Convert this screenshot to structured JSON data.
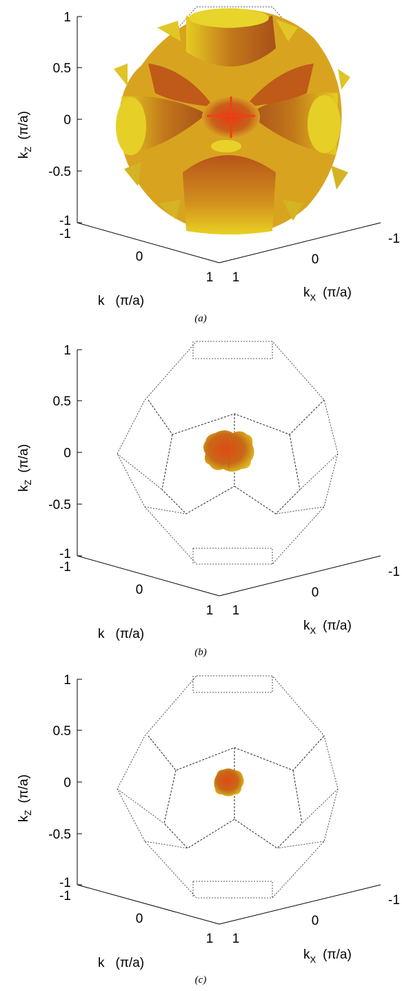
{
  "panels": [
    {
      "id": "a",
      "caption": "(a)",
      "z_ticks": [
        "1",
        "0.5",
        "0",
        "-0.5",
        "-1"
      ],
      "y_ticks": [
        "-1",
        "0",
        "1"
      ],
      "x_ticks": [
        "-1",
        "0",
        "1"
      ],
      "zlabel_main": "k",
      "zlabel_sub": "Z",
      "zlabel_unit": "(π/a)",
      "ylabel_main": "k",
      "ylabel_unit": "(π/a)",
      "xlabel_main": "k",
      "xlabel_sub": "X",
      "xlabel_unit": "(π/a)"
    },
    {
      "id": "b",
      "caption": "(b)",
      "z_ticks": [
        "1",
        "0.5",
        "0",
        "-0.5",
        "-1"
      ],
      "y_ticks": [
        "-1",
        "0",
        "1"
      ],
      "x_ticks": [
        "-1",
        "0",
        "1"
      ],
      "zlabel_main": "k",
      "zlabel_sub": "Z",
      "zlabel_unit": "(π/a)",
      "ylabel_main": "k",
      "ylabel_unit": "(π/a)",
      "xlabel_main": "k",
      "xlabel_sub": "X",
      "xlabel_unit": "(π/a)"
    },
    {
      "id": "c",
      "caption": "(c)",
      "z_ticks": [
        "1",
        "0.5",
        "0",
        "-0.5",
        "-1"
      ],
      "y_ticks": [
        "-1",
        "0",
        "1"
      ],
      "x_ticks": [
        "-1",
        "0",
        "1"
      ],
      "zlabel_main": "k",
      "zlabel_sub": "Z",
      "zlabel_unit": "(π/a)",
      "ylabel_main": "k",
      "ylabel_unit": "(π/a)",
      "xlabel_main": "k",
      "xlabel_sub": "X",
      "xlabel_unit": "(π/a)"
    }
  ],
  "colors": {
    "surface_light": "#e8d020",
    "surface_mid": "#d89018",
    "surface_dark": "#b04010",
    "surface_hot": "#e03010",
    "zone_edges": "#222222"
  }
}
